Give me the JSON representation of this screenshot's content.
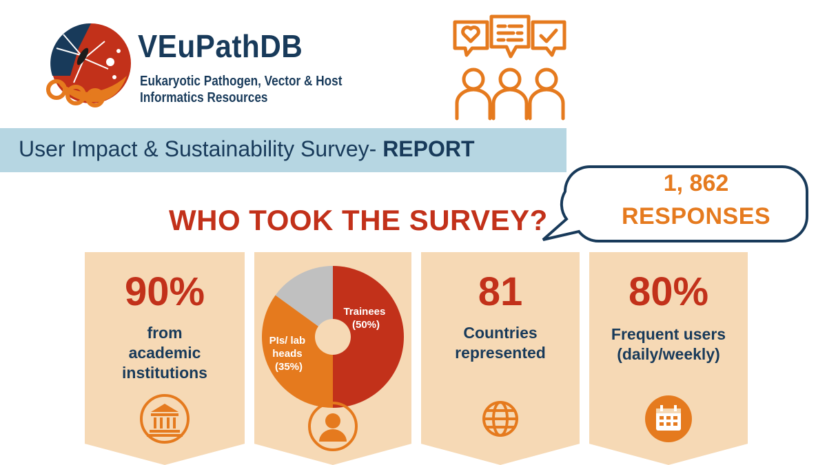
{
  "brand": {
    "name": "VEuPathDB",
    "subtitle_line1": "Eukaryotic Pathogen, Vector & Host",
    "subtitle_line2": "Informatics Resources"
  },
  "report": {
    "title_regular": "User Impact & Sustainability Survey- ",
    "title_bold": "REPORT"
  },
  "question": "WHO TOOK THE SURVEY?",
  "responses": {
    "count": "1, 862",
    "label": "RESPONSES"
  },
  "stats": [
    {
      "value": "90%",
      "label_lines": [
        "from",
        "academic",
        "institutions"
      ],
      "icon": "institution-icon"
    },
    {
      "value": "81",
      "label_lines": [
        "Countries",
        "represented"
      ],
      "icon": "globe-icon"
    },
    {
      "value": "80%",
      "label_lines": [
        "Frequent users",
        "(daily/weekly)"
      ],
      "icon": "calendar-icon"
    }
  ],
  "roles_icon": "user-icon",
  "survey_icon": "feedback-people-icon",
  "colors": {
    "navy": "#183a5a",
    "red": "#c2311a",
    "orange": "#e57a1e",
    "card": "#f6d9b5",
    "banner": "#b6d6e2",
    "grey": "#c0c0c0"
  },
  "chart_data": {
    "type": "pie",
    "style": "donut",
    "slices": [
      {
        "label_lines": [
          "Trainees",
          "(50%)"
        ],
        "value": 50,
        "color": "#c2311a"
      },
      {
        "label_lines": [
          "PIs/ lab",
          "heads",
          "(35%)"
        ],
        "value": 35,
        "color": "#e57a1e"
      },
      {
        "value": 15,
        "color": "#c0c0c0"
      }
    ]
  }
}
